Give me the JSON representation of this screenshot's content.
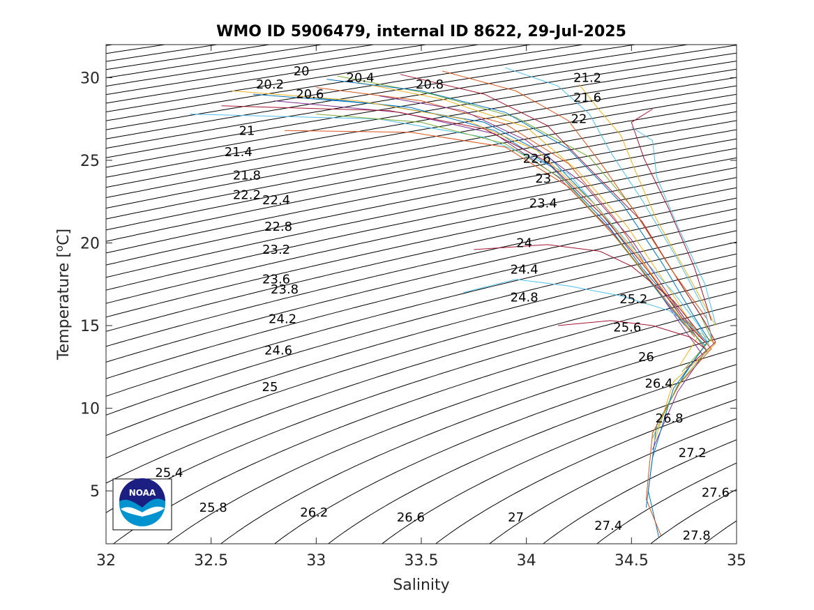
{
  "chart_data": {
    "type": "line",
    "title": "WMO ID 5906479, internal ID 8622, 29-Jul-2025",
    "xlabel": "Salinity",
    "ylabel": "Temperature [",
    "ylabel_sup": "o",
    "ylabel_end": "C]",
    "xlim": [
      32,
      35
    ],
    "ylim": [
      1.8,
      32
    ],
    "x_ticks": [
      32,
      32.5,
      33,
      33.5,
      34,
      34.5,
      35
    ],
    "x_tick_labels": [
      "32",
      "32.5",
      "33",
      "33.5",
      "34",
      "34.5",
      "35"
    ],
    "y_ticks": [
      5,
      10,
      15,
      20,
      25,
      30
    ],
    "y_tick_labels": [
      "5",
      "10",
      "15",
      "20",
      "25",
      "30"
    ],
    "grid": false,
    "legend": "none",
    "density_contours": {
      "levels_step": 0.2,
      "labels": [
        {
          "text": "20",
          "x": 32.93,
          "y": 30.4
        },
        {
          "text": "20.2",
          "x": 32.78,
          "y": 29.6
        },
        {
          "text": "20.4",
          "x": 33.21,
          "y": 30.0
        },
        {
          "text": "20.6",
          "x": 32.97,
          "y": 29.0
        },
        {
          "text": "20.8",
          "x": 33.54,
          "y": 29.6
        },
        {
          "text": "21",
          "x": 32.67,
          "y": 26.8
        },
        {
          "text": "21.2",
          "x": 34.29,
          "y": 30.0
        },
        {
          "text": "21.4",
          "x": 32.63,
          "y": 25.5
        },
        {
          "text": "21.6",
          "x": 34.29,
          "y": 28.8
        },
        {
          "text": "21.8",
          "x": 32.67,
          "y": 24.1
        },
        {
          "text": "22",
          "x": 34.25,
          "y": 27.5
        },
        {
          "text": "22.2",
          "x": 32.67,
          "y": 22.9
        },
        {
          "text": "22.4",
          "x": 32.81,
          "y": 22.6
        },
        {
          "text": "22.6",
          "x": 34.05,
          "y": 25.1
        },
        {
          "text": "22.8",
          "x": 32.82,
          "y": 21.0
        },
        {
          "text": "23",
          "x": 34.08,
          "y": 23.9
        },
        {
          "text": "23.2",
          "x": 32.81,
          "y": 19.6
        },
        {
          "text": "23.4",
          "x": 34.08,
          "y": 22.4
        },
        {
          "text": "23.6",
          "x": 32.81,
          "y": 17.8
        },
        {
          "text": "23.8",
          "x": 32.85,
          "y": 17.2
        },
        {
          "text": "24",
          "x": 33.99,
          "y": 20.0
        },
        {
          "text": "24.2",
          "x": 32.84,
          "y": 15.4
        },
        {
          "text": "24.4",
          "x": 33.99,
          "y": 18.4
        },
        {
          "text": "24.6",
          "x": 32.82,
          "y": 13.5
        },
        {
          "text": "24.8",
          "x": 33.99,
          "y": 16.7
        },
        {
          "text": "25",
          "x": 32.78,
          "y": 11.3
        },
        {
          "text": "25.2",
          "x": 34.51,
          "y": 16.6
        },
        {
          "text": "25.4",
          "x": 32.3,
          "y": 6.1
        },
        {
          "text": "25.6",
          "x": 34.48,
          "y": 14.9
        },
        {
          "text": "25.8",
          "x": 32.51,
          "y": 4.0
        },
        {
          "text": "26",
          "x": 34.57,
          "y": 13.1
        },
        {
          "text": "26.2",
          "x": 32.99,
          "y": 3.7
        },
        {
          "text": "26.4",
          "x": 34.63,
          "y": 11.5
        },
        {
          "text": "26.6",
          "x": 33.45,
          "y": 3.4
        },
        {
          "text": "26.8",
          "x": 34.68,
          "y": 9.4
        },
        {
          "text": "27",
          "x": 33.95,
          "y": 3.4
        },
        {
          "text": "27.2",
          "x": 34.79,
          "y": 7.3
        },
        {
          "text": "27.4",
          "x": 34.39,
          "y": 2.9
        },
        {
          "text": "27.6",
          "x": 34.9,
          "y": 4.9
        },
        {
          "text": "27.8",
          "x": 34.81,
          "y": 2.3
        }
      ]
    },
    "series": [
      {
        "values": [
          [
            32.7,
            29.0
          ],
          [
            33.3,
            28.4
          ],
          [
            33.8,
            27.3
          ],
          [
            34.1,
            25.3
          ],
          [
            34.35,
            22.0
          ],
          [
            34.55,
            18.5
          ],
          [
            34.75,
            15.5
          ],
          [
            34.86,
            14.0
          ],
          [
            34.75,
            12.0
          ],
          [
            34.62,
            9.0
          ],
          [
            34.58,
            5.0
          ],
          [
            34.63,
            2.2
          ]
        ],
        "color": "#0072bd"
      },
      {
        "values": [
          [
            33.0,
            29.4
          ],
          [
            33.5,
            28.6
          ],
          [
            33.9,
            27.2
          ],
          [
            34.2,
            24.8
          ],
          [
            34.42,
            21.5
          ],
          [
            34.6,
            18.0
          ],
          [
            34.78,
            15.0
          ],
          [
            34.88,
            13.6
          ],
          [
            34.73,
            11.5
          ],
          [
            34.6,
            8.5
          ],
          [
            34.57,
            4.5
          ],
          [
            34.64,
            2.3
          ]
        ],
        "color": "#d95319"
      },
      {
        "values": [
          [
            33.2,
            29.7
          ],
          [
            33.6,
            28.7
          ],
          [
            34.0,
            27.0
          ],
          [
            34.25,
            24.3
          ],
          [
            34.48,
            21.0
          ],
          [
            34.66,
            17.6
          ],
          [
            34.8,
            14.8
          ],
          [
            34.9,
            13.9
          ],
          [
            34.7,
            11.6
          ],
          [
            34.61,
            8.0
          ]
        ],
        "color": "#edb120"
      },
      {
        "values": [
          [
            32.8,
            28.6
          ],
          [
            33.4,
            27.9
          ],
          [
            33.85,
            26.6
          ],
          [
            34.15,
            24.0
          ],
          [
            34.4,
            20.8
          ],
          [
            34.62,
            17.2
          ],
          [
            34.76,
            14.6
          ],
          [
            34.84,
            13.2
          ],
          [
            34.72,
            11.0
          ],
          [
            34.6,
            7.5
          ]
        ],
        "color": "#7e2f8e"
      },
      {
        "values": [
          [
            33.1,
            30.1
          ],
          [
            33.55,
            29.0
          ],
          [
            33.95,
            27.6
          ],
          [
            34.3,
            25.2
          ],
          [
            34.5,
            22.2
          ],
          [
            34.68,
            18.6
          ],
          [
            34.83,
            15.6
          ],
          [
            34.88,
            14.2
          ],
          [
            34.74,
            12.2
          ]
        ],
        "color": "#77ac30"
      },
      {
        "values": [
          [
            32.4,
            27.8
          ],
          [
            33.3,
            27.5
          ],
          [
            33.8,
            26.4
          ],
          [
            34.2,
            24.2
          ],
          [
            34.45,
            20.5
          ],
          [
            34.7,
            17.0
          ],
          [
            34.82,
            15.0
          ],
          [
            34.87,
            13.8
          ]
        ],
        "color": "#4dbeee"
      },
      {
        "values": [
          [
            33.4,
            30.2
          ],
          [
            33.8,
            29.0
          ],
          [
            34.1,
            27.1
          ],
          [
            34.3,
            24.5
          ],
          [
            34.55,
            21.3
          ],
          [
            34.72,
            17.8
          ],
          [
            34.85,
            15.2
          ],
          [
            34.9,
            14.0
          ],
          [
            34.76,
            12.4
          ]
        ],
        "color": "#a2142f"
      },
      {
        "values": [
          [
            32.9,
            28.9
          ],
          [
            33.45,
            28.2
          ],
          [
            33.85,
            26.8
          ],
          [
            34.12,
            24.6
          ],
          [
            34.38,
            21.2
          ],
          [
            34.58,
            17.8
          ],
          [
            34.74,
            15.2
          ],
          [
            34.85,
            13.8
          ],
          [
            34.7,
            11.2
          ],
          [
            34.6,
            7.0
          ],
          [
            34.57,
            4.0
          ]
        ],
        "color": "#0072bd"
      },
      {
        "values": [
          [
            33.6,
            30.4
          ],
          [
            33.95,
            29.2
          ],
          [
            34.2,
            27.4
          ],
          [
            34.35,
            24.9
          ],
          [
            34.52,
            21.8
          ],
          [
            34.7,
            18.2
          ],
          [
            34.86,
            15.4
          ],
          [
            34.89,
            13.9
          ]
        ],
        "color": "#d95319"
      },
      {
        "values": [
          [
            32.6,
            29.2
          ],
          [
            33.2,
            28.6
          ],
          [
            33.7,
            27.5
          ],
          [
            34.05,
            25.6
          ],
          [
            34.32,
            22.4
          ],
          [
            34.55,
            18.9
          ],
          [
            34.73,
            15.8
          ],
          [
            34.82,
            14.4
          ],
          [
            34.73,
            12.6
          ]
        ],
        "color": "#edb120"
      },
      {
        "values": [
          [
            33.3,
            28.9
          ],
          [
            33.7,
            28.0
          ],
          [
            34.0,
            26.2
          ],
          [
            34.27,
            23.6
          ],
          [
            34.5,
            20.2
          ],
          [
            34.68,
            16.8
          ],
          [
            34.8,
            14.5
          ],
          [
            34.86,
            13.4
          ]
        ],
        "color": "#7e2f8e"
      },
      {
        "values": [
          [
            33.0,
            27.8
          ],
          [
            33.5,
            27.3
          ],
          [
            33.9,
            26.0
          ],
          [
            34.18,
            23.8
          ],
          [
            34.42,
            20.4
          ],
          [
            34.64,
            16.9
          ],
          [
            34.79,
            14.6
          ],
          [
            34.86,
            13.5
          ],
          [
            34.72,
            11.4
          ],
          [
            34.6,
            8.2
          ]
        ],
        "color": "#77ac30"
      },
      {
        "values": [
          [
            33.9,
            30.6
          ],
          [
            34.15,
            29.5
          ],
          [
            34.3,
            27.8
          ],
          [
            34.4,
            25.5
          ],
          [
            34.55,
            22.6
          ],
          [
            34.72,
            19.0
          ],
          [
            34.85,
            15.9
          ],
          [
            34.88,
            14.3
          ]
        ],
        "color": "#4dbeee"
      },
      {
        "values": [
          [
            32.55,
            28.3
          ],
          [
            33.35,
            28.0
          ],
          [
            33.8,
            26.9
          ],
          [
            34.1,
            24.9
          ],
          [
            34.36,
            21.7
          ],
          [
            34.58,
            18.3
          ],
          [
            34.75,
            15.3
          ],
          [
            34.85,
            14.0
          ]
        ],
        "color": "#a2142f"
      },
      {
        "values": [
          [
            33.75,
            19.6
          ],
          [
            34.1,
            19.9
          ],
          [
            34.35,
            19.5
          ],
          [
            34.5,
            18.6
          ],
          [
            34.7,
            16.5
          ],
          [
            34.82,
            14.6
          ]
        ],
        "color": "#a2142f"
      },
      {
        "values": [
          [
            33.7,
            17.0
          ],
          [
            33.95,
            17.8
          ],
          [
            34.2,
            17.4
          ],
          [
            34.45,
            16.8
          ],
          [
            34.68,
            15.9
          ],
          [
            34.83,
            14.5
          ]
        ],
        "color": "#4dbeee"
      },
      {
        "values": [
          [
            34.15,
            15.0
          ],
          [
            34.4,
            15.3
          ],
          [
            34.6,
            15.0
          ],
          [
            34.78,
            14.3
          ],
          [
            34.85,
            13.6
          ]
        ],
        "color": "#a2142f"
      },
      {
        "values": [
          [
            32.85,
            26.8
          ],
          [
            33.45,
            26.7
          ],
          [
            33.9,
            25.8
          ],
          [
            34.2,
            23.4
          ],
          [
            34.45,
            20.0
          ],
          [
            34.66,
            16.6
          ],
          [
            34.8,
            14.3
          ]
        ],
        "color": "#d95319"
      },
      {
        "values": [
          [
            33.05,
            29.9
          ],
          [
            33.5,
            29.2
          ],
          [
            33.9,
            27.9
          ],
          [
            34.2,
            25.7
          ],
          [
            34.46,
            22.3
          ],
          [
            34.65,
            18.7
          ],
          [
            34.8,
            15.5
          ],
          [
            34.87,
            14.1
          ]
        ],
        "color": "#0072bd"
      },
      {
        "values": [
          [
            34.25,
            29.6
          ],
          [
            34.35,
            28.0
          ],
          [
            34.45,
            26.5
          ],
          [
            34.52,
            24.3
          ],
          [
            34.62,
            21.4
          ],
          [
            34.78,
            17.8
          ],
          [
            34.9,
            15.0
          ]
        ],
        "color": "#edb120"
      },
      {
        "values": [
          [
            34.5,
            27.0
          ],
          [
            34.6,
            26.2
          ],
          [
            34.62,
            24.0
          ],
          [
            34.72,
            21.0
          ],
          [
            34.85,
            17.5
          ],
          [
            34.9,
            15.1
          ]
        ],
        "color": "#4dbeee"
      },
      {
        "values": [
          [
            34.6,
            28.1
          ],
          [
            34.5,
            27.3
          ],
          [
            34.56,
            25.1
          ],
          [
            34.68,
            22.0
          ],
          [
            34.8,
            18.5
          ],
          [
            34.88,
            15.3
          ]
        ],
        "color": "#a2142f"
      }
    ]
  },
  "logo": {
    "text": "NOAA"
  }
}
